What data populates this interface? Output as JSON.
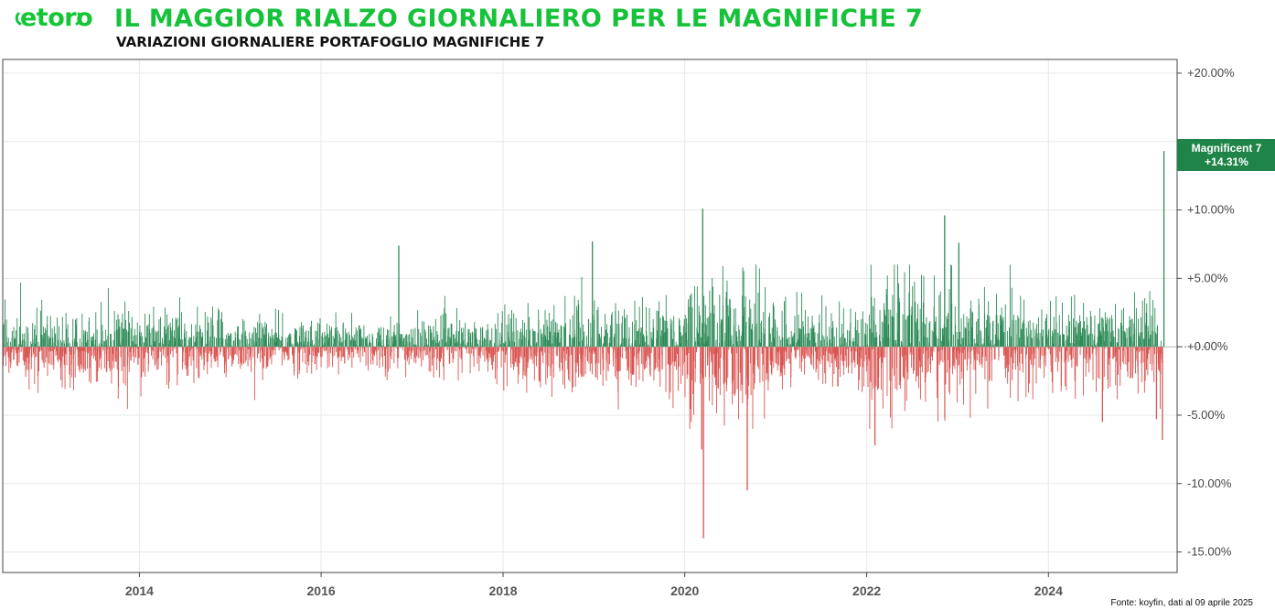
{
  "brand": {
    "logo_text": "etoro",
    "color": "#13c636"
  },
  "header": {
    "title": "IL MAGGIOR RIALZO GIORNALIERO PER LE MAGNIFICHE 7",
    "subtitle": "VARIAZIONI GIORNALIERE PORTAFOGLIO MAGNIFICHE 7"
  },
  "source": "Fonte: koyfin, dati al 09 aprile 2025",
  "colors": {
    "up": "#2e8b57",
    "down": "#d9534f",
    "tag": "#1f8447",
    "grid": "#e8e8e8",
    "title": "#15c23a"
  },
  "chart_data": {
    "type": "bar",
    "title": "IL MAGGIOR RIALZO GIORNALIERO PER LE MAGNIFICHE 7",
    "subtitle": "VARIAZIONI GIORNALIERE PORTAFOGLIO MAGNIFICHE 7",
    "x_range": [
      "2012-07-01",
      "2025-06-01"
    ],
    "x_ticks": [
      "2014",
      "2016",
      "2018",
      "2020",
      "2022",
      "2024"
    ],
    "x_tick_years": [
      2014,
      2016,
      2018,
      2020,
      2022,
      2024
    ],
    "ylim": [
      -16.5,
      21.0
    ],
    "y_ticks": [
      20,
      15,
      10,
      5,
      0,
      -5,
      -10,
      -15
    ],
    "y_tick_labels": [
      "+20.00%",
      "",
      "+10.00%",
      "+5.00%",
      "+0.00%",
      "-5.00%",
      "-10.00%",
      "-15.00%"
    ],
    "grid": true,
    "series": [
      {
        "name": "Magnificent 7",
        "last_value": 14.31,
        "last_label": "+14.31%"
      }
    ],
    "notable_points": [
      {
        "date": "2020-03-13",
        "value": 10.1
      },
      {
        "date": "2020-03-16",
        "value": -14.0
      },
      {
        "date": "2020-03-09",
        "value": -7.5
      },
      {
        "date": "2020-09-08",
        "value": -10.5
      },
      {
        "date": "2016-11-08",
        "value": 7.4
      },
      {
        "date": "2018-12-26",
        "value": 7.7
      },
      {
        "date": "2022-11-10",
        "value": 9.6
      },
      {
        "date": "2023-01-06",
        "value": 7.6
      },
      {
        "date": "2022-02-03",
        "value": -7.2
      },
      {
        "date": "2024-08-05",
        "value": -5.5
      },
      {
        "date": "2025-03-10",
        "value": -5.3
      },
      {
        "date": "2025-04-03",
        "value": -6.8
      },
      {
        "date": "2025-04-09",
        "value": 14.31
      }
    ],
    "volatility_regimes": [
      {
        "start": "2012-07-01",
        "end": "2014-12-31",
        "typical_abs": 1.3
      },
      {
        "start": "2015-01-01",
        "end": "2017-12-31",
        "typical_abs": 1.0
      },
      {
        "start": "2018-01-01",
        "end": "2019-12-31",
        "typical_abs": 1.6
      },
      {
        "start": "2020-01-01",
        "end": "2020-12-31",
        "typical_abs": 2.6
      },
      {
        "start": "2021-01-01",
        "end": "2021-12-31",
        "typical_abs": 1.5
      },
      {
        "start": "2022-01-01",
        "end": "2022-12-31",
        "typical_abs": 2.4
      },
      {
        "start": "2023-01-01",
        "end": "2023-12-31",
        "typical_abs": 1.6
      },
      {
        "start": "2024-01-01",
        "end": "2025-04-09",
        "typical_abs": 1.7
      }
    ]
  }
}
